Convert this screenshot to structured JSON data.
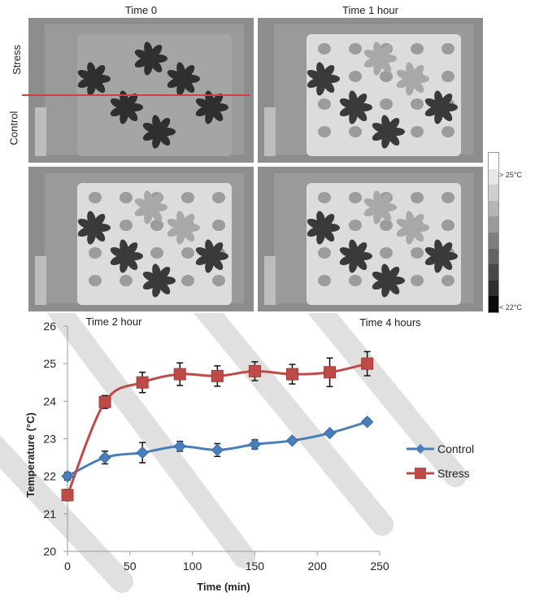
{
  "panels": [
    {
      "title": "Time 0"
    },
    {
      "title": "Time 1 hour"
    },
    {
      "title": "Time 2 hour"
    },
    {
      "title": "Time 4 hours"
    }
  ],
  "side_labels": {
    "top": "Stress",
    "bottom": "Control"
  },
  "colorbar": {
    "max_label": "> 25°C",
    "min_label": "< 22°C",
    "colors": [
      "#ffffff",
      "#e6e6e6",
      "#cfcfcf",
      "#b5b5b5",
      "#9a9a9a",
      "#7e7e7e",
      "#636363",
      "#484848",
      "#2e2e2e",
      "#0a0a0a"
    ]
  },
  "accent": {
    "divider_line": "#d04040"
  },
  "chart_data": {
    "type": "line",
    "title": "",
    "xlabel": "Time (min)",
    "ylabel": "Temperature (°C)",
    "xlim": [
      0,
      250
    ],
    "ylim": [
      20,
      26
    ],
    "xticks": [
      0,
      50,
      100,
      150,
      200,
      250
    ],
    "yticks": [
      20,
      21,
      22,
      23,
      24,
      25,
      26
    ],
    "grid": false,
    "legend": "right",
    "x": [
      0,
      30,
      60,
      90,
      120,
      150,
      180,
      210,
      240
    ],
    "series": [
      {
        "name": "Control",
        "color": "#4a7ebb",
        "marker": "diamond",
        "values": [
          22.0,
          22.5,
          22.63,
          22.8,
          22.7,
          22.85,
          22.95,
          23.15,
          23.45
        ],
        "error": [
          0.1,
          0.17,
          0.27,
          0.13,
          0.17,
          0.12,
          0.05,
          0.05,
          0.08
        ]
      },
      {
        "name": "Stress",
        "color": "#be4b48",
        "marker": "square",
        "values": [
          21.5,
          23.98,
          24.5,
          24.72,
          24.67,
          24.8,
          24.72,
          24.77,
          25.0
        ],
        "error": [
          0.15,
          0.17,
          0.27,
          0.3,
          0.27,
          0.25,
          0.26,
          0.38,
          0.32
        ]
      }
    ]
  }
}
